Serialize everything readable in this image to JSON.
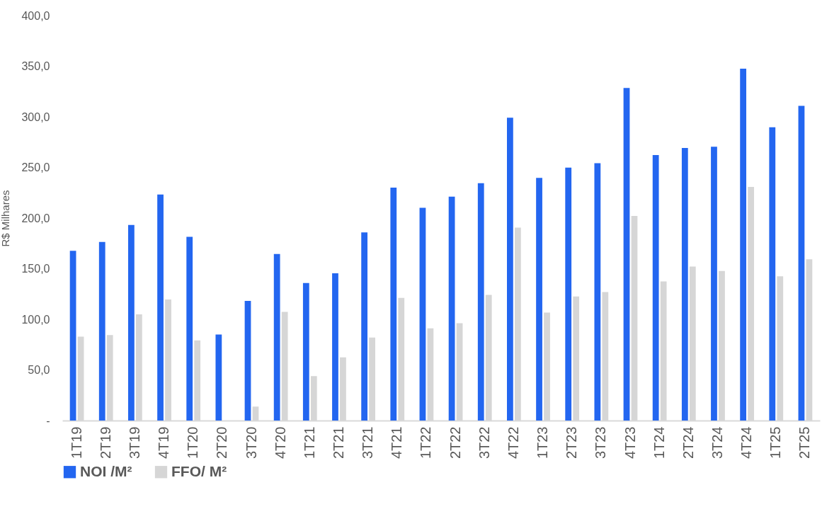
{
  "chart_data": {
    "type": "bar",
    "ylabel": "R$ Milhares",
    "categories": [
      "1T19",
      "2T19",
      "3T19",
      "4T19",
      "1T20",
      "2T20",
      "3T20",
      "4T20",
      "1T21",
      "2T21",
      "3T21",
      "4T21",
      "1T22",
      "2T22",
      "3T22",
      "4T22",
      "1T23",
      "2T23",
      "3T23",
      "4T23",
      "1T24",
      "2T24",
      "3T24",
      "4T24",
      "1T25",
      "2T25"
    ],
    "series": [
      {
        "name": "NOI /M²",
        "color": "#2366f0",
        "values": [
          167.6,
          176.4,
          193.2,
          223.3,
          181.4,
          85.0,
          118.2,
          164.5,
          135.8,
          145.5,
          185.8,
          230.0,
          210.1,
          221.1,
          234.4,
          299.2,
          239.6,
          249.8,
          254.2,
          328.5,
          262.2,
          269.2,
          270.5,
          347.5,
          289.6,
          310.8
        ]
      },
      {
        "name": "FFO/ M²",
        "color": "#d6d6d6",
        "values": [
          82.8,
          84.5,
          104.9,
          119.5,
          79.2,
          0,
          13.8,
          107.4,
          43.9,
          62.4,
          82.0,
          121.2,
          91.1,
          96.1,
          124.2,
          190.5,
          106.6,
          122.6,
          127.0,
          202.1,
          137.5,
          152.1,
          147.7,
          230.8,
          142.4,
          159.3
        ]
      }
    ],
    "ylim": [
      0,
      400
    ],
    "yticks": [
      {
        "value": 0,
        "label": "-"
      },
      {
        "value": 50,
        "label": "50,0"
      },
      {
        "value": 100,
        "label": "100,0"
      },
      {
        "value": 150,
        "label": "150,0"
      },
      {
        "value": 200,
        "label": "200,0"
      },
      {
        "value": 250,
        "label": "250,0"
      },
      {
        "value": 300,
        "label": "300,0"
      },
      {
        "value": 350,
        "label": "350,0"
      },
      {
        "value": 400,
        "label": "400,0"
      }
    ],
    "grid": false,
    "legend": "bottom"
  }
}
